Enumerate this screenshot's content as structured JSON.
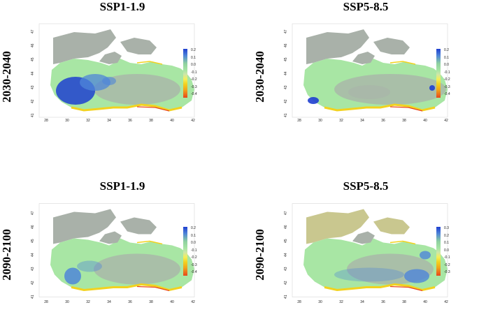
{
  "columns": [
    "SSP1-1.9",
    "SSP5-8.5",
    "SSP1-1.9",
    "SSP5-8.5"
  ],
  "rows": [
    "2030-2040",
    "2030-2040",
    "2090-2100",
    "2090-2100"
  ],
  "x_ticks": [
    "28",
    "30",
    "32",
    "34",
    "36",
    "38",
    "40",
    "42"
  ],
  "y_ticks": [
    "41",
    "42",
    "43",
    "44",
    "45",
    "46",
    "47"
  ],
  "legends": [
    [
      "0.2",
      "0.1",
      "0.0",
      "-0.1",
      "-0.2",
      "-0.3",
      "-0.4"
    ],
    [
      "0.2",
      "0.1",
      "0.0",
      "-0.1",
      "-0.2",
      "-0.3",
      "-0.4"
    ],
    [
      "0.2",
      "0.1",
      "0.0",
      "-0.1",
      "-0.2",
      "-0.3",
      "-0.4"
    ],
    [
      "0.3",
      "0.2",
      "0.1",
      "0.0",
      "-0.1",
      "-0.2",
      "-0.3"
    ]
  ],
  "colors": {
    "land": "#a9b1a9",
    "sea_neutral": "#a8e6a4",
    "negative_low": "#f2d21f",
    "negative_high": "#e8461c",
    "positive_high": "#1f3fd0",
    "positive_mid": "#4f86d8"
  }
}
